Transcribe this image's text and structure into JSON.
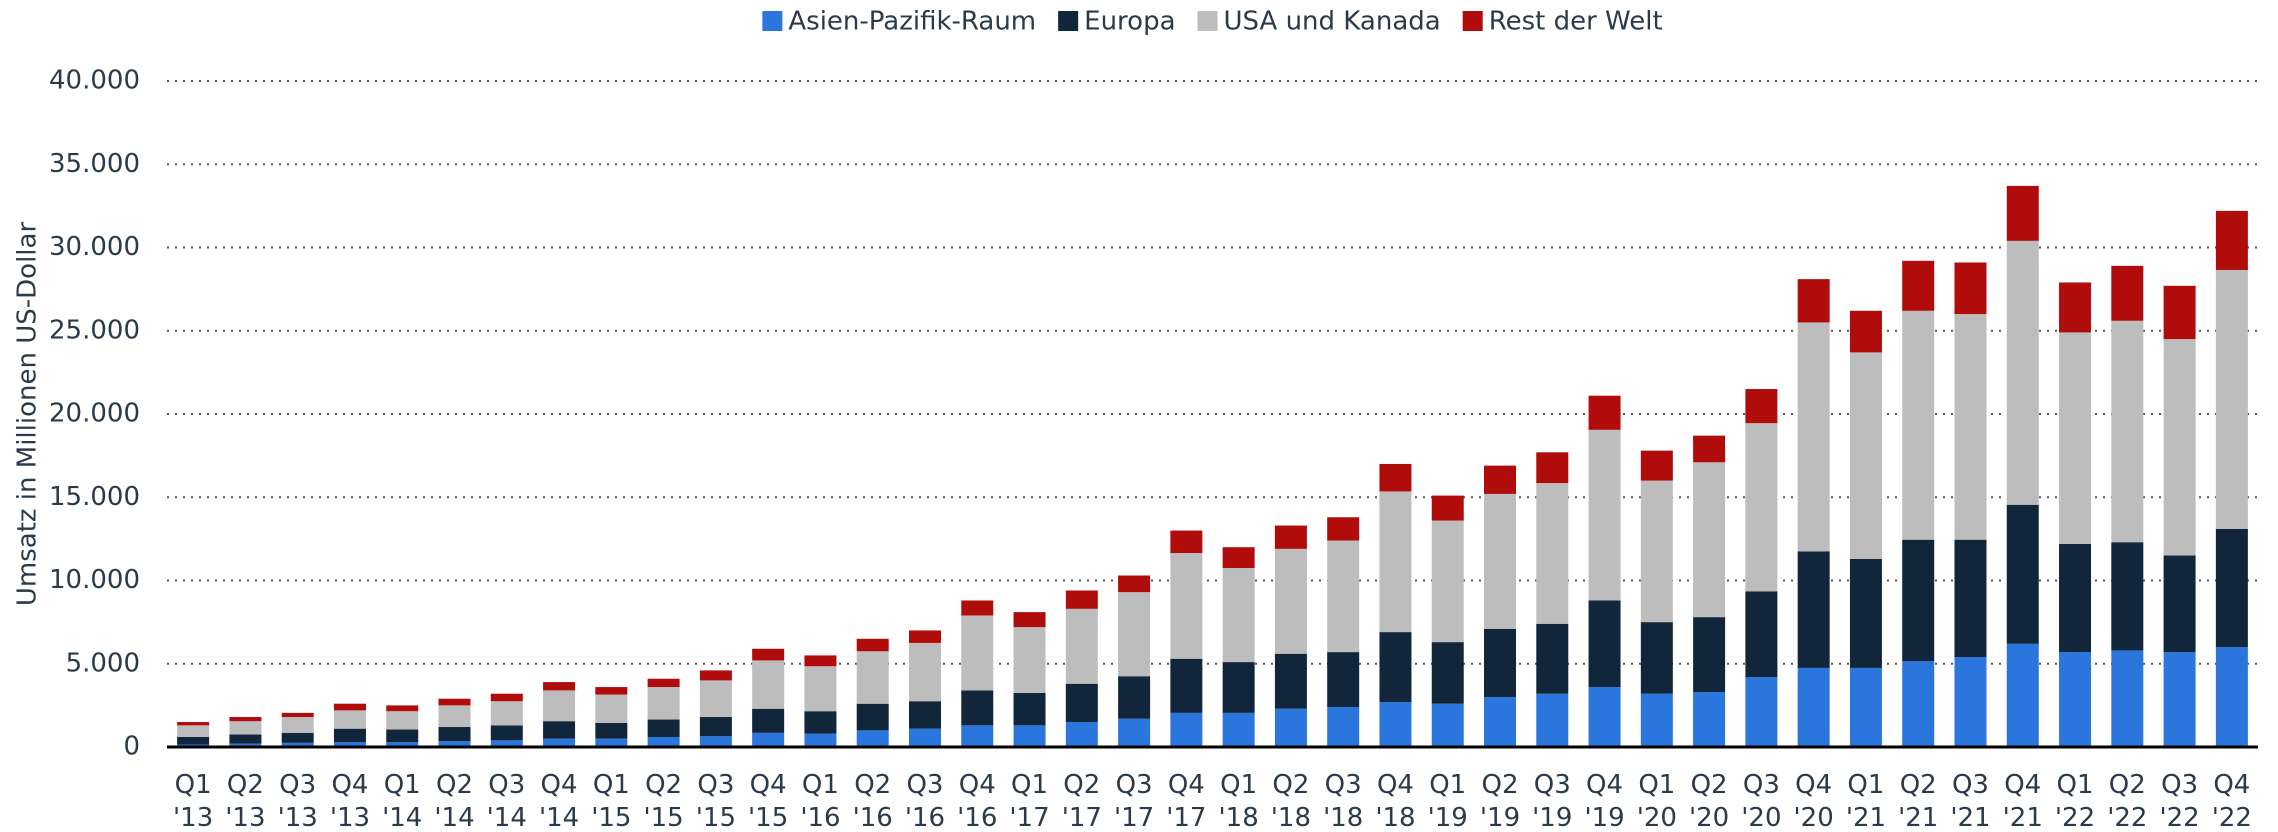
{
  "chart_data": {
    "type": "bar",
    "stacked": true,
    "y_label": "Umsatz in Millionen US-Dollar",
    "categories": [
      "Q1 '13",
      "Q2 '13",
      "Q3 '13",
      "Q4 '13",
      "Q1 '14",
      "Q2 '14",
      "Q3 '14",
      "Q4 '14",
      "Q1 '15",
      "Q2 '15",
      "Q3 '15",
      "Q4 '15",
      "Q1 '16",
      "Q2 '16",
      "Q3 '16",
      "Q4 '16",
      "Q1 '17",
      "Q2 '17",
      "Q3 '17",
      "Q4 '17",
      "Q1 '18",
      "Q2 '18",
      "Q3 '18",
      "Q4 '18",
      "Q1 '19",
      "Q2 '19",
      "Q3 '19",
      "Q4 '19",
      "Q1 '20",
      "Q2 '20",
      "Q3 '20",
      "Q4 '20",
      "Q1 '21",
      "Q2 '21",
      "Q3 '21",
      "Q4 '21",
      "Q1 '22",
      "Q2 '22",
      "Q3 '22",
      "Q4 '22"
    ],
    "series": [
      {
        "name": "Asien-Pazifik-Raum",
        "color": "#2a76dd",
        "values": [
          150,
          200,
          250,
          300,
          300,
          350,
          400,
          500,
          500,
          600,
          650,
          850,
          800,
          1000,
          1100,
          1300,
          1300,
          1500,
          1700,
          2050,
          2050,
          2300,
          2400,
          2700,
          2600,
          3000,
          3200,
          3600,
          3200,
          3300,
          4200,
          4750,
          4750,
          5150,
          5400,
          6200,
          5700,
          5800,
          5700,
          6000
        ]
      },
      {
        "name": "Europa",
        "color": "#12263b",
        "values": [
          450,
          550,
          600,
          800,
          750,
          850,
          900,
          1050,
          950,
          1050,
          1150,
          1450,
          1350,
          1600,
          1650,
          2100,
          1950,
          2300,
          2550,
          3250,
          3050,
          3300,
          3300,
          4200,
          3700,
          4100,
          4200,
          5200,
          4300,
          4500,
          5150,
          7000,
          6550,
          7300,
          7050,
          8350,
          6500,
          6500,
          5800,
          7100
        ]
      },
      {
        "name": "USA und Kanada",
        "color": "#bdbdbd",
        "values": [
          700,
          800,
          950,
          1100,
          1100,
          1300,
          1450,
          1850,
          1700,
          1950,
          2200,
          2900,
          2700,
          3150,
          3500,
          4500,
          3950,
          4500,
          5050,
          6350,
          5650,
          6300,
          6700,
          8450,
          7300,
          8100,
          8450,
          10250,
          8500,
          9300,
          10100,
          13750,
          12400,
          13750,
          13550,
          15850,
          12700,
          13300,
          13000,
          15550
        ]
      },
      {
        "name": "Rest der Welt",
        "color": "#b00c0c",
        "values": [
          200,
          250,
          250,
          400,
          350,
          400,
          450,
          500,
          450,
          500,
          600,
          700,
          650,
          750,
          750,
          900,
          900,
          1100,
          1000,
          1350,
          1250,
          1400,
          1400,
          1650,
          1500,
          1700,
          1850,
          2050,
          1800,
          1600,
          2050,
          2600,
          2500,
          3000,
          3100,
          3300,
          3000,
          3300,
          3200,
          3550
        ]
      }
    ],
    "ylim": [
      0,
      40000
    ],
    "yticks": [
      0,
      {
        "value": 5000,
        "label": "5.000"
      },
      {
        "value": 10000,
        "label": "10.000"
      },
      {
        "value": 15000,
        "label": "15.000"
      },
      {
        "value": 20000,
        "label": "20.000"
      },
      {
        "value": 25000,
        "label": "25.000"
      },
      {
        "value": 30000,
        "label": "30.000"
      },
      {
        "value": 35000,
        "label": "35.000"
      },
      {
        "value": 40000,
        "label": "40.000"
      }
    ],
    "grid": true,
    "legend": "top"
  }
}
